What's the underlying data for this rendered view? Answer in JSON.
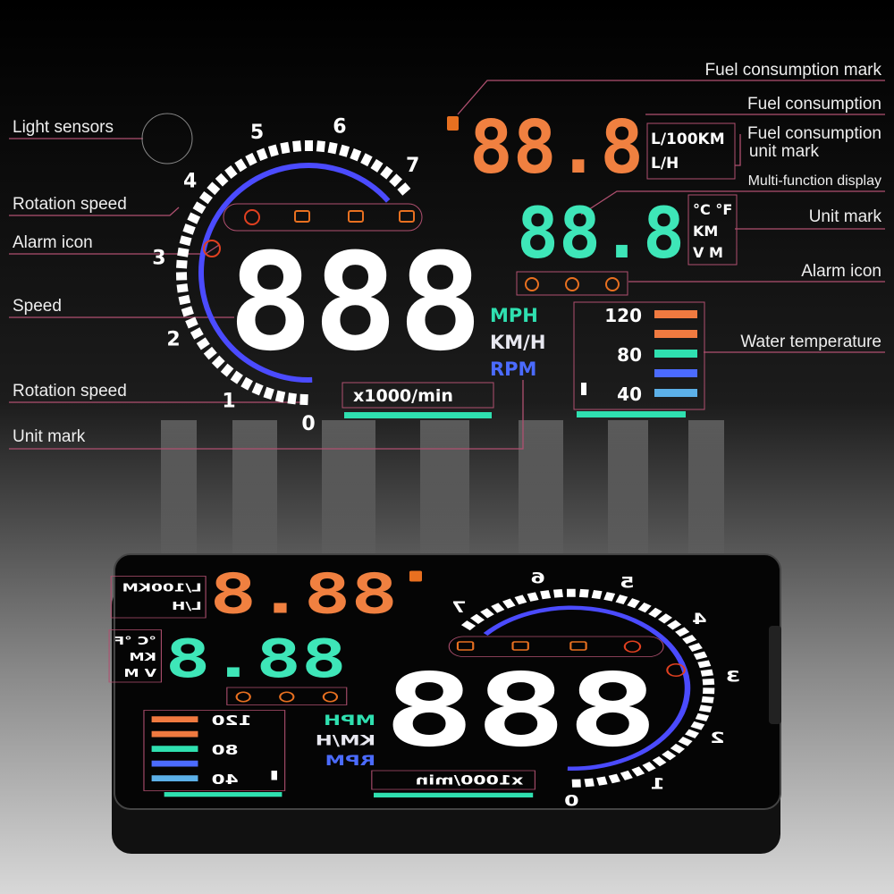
{
  "annotations": {
    "left": [
      "Light sensors",
      "Rotation speed",
      "Alarm icon",
      "Speed",
      "Rotation speed",
      "Unit mark"
    ],
    "right": [
      "Fuel consumption mark",
      "Fuel consumption",
      [
        "Fuel consumption",
        "unit mark"
      ],
      "Multi-function display",
      "Unit mark",
      "Alarm icon",
      "Water temperature"
    ]
  },
  "display": {
    "fuel": "88.8",
    "fuel_units": [
      "L/100KM",
      "L/H"
    ],
    "multi": "88.8",
    "multi_units": [
      "°C °F",
      "KM",
      "V M"
    ],
    "speed": "888",
    "speed_units": [
      "MPH",
      "KM/H",
      "RPM"
    ],
    "rpm_unit": "x1000/min",
    "rpm_ticks": [
      0,
      1,
      2,
      3,
      4,
      5,
      6,
      7
    ],
    "temperature_ticks": [
      120,
      80,
      40
    ]
  }
}
